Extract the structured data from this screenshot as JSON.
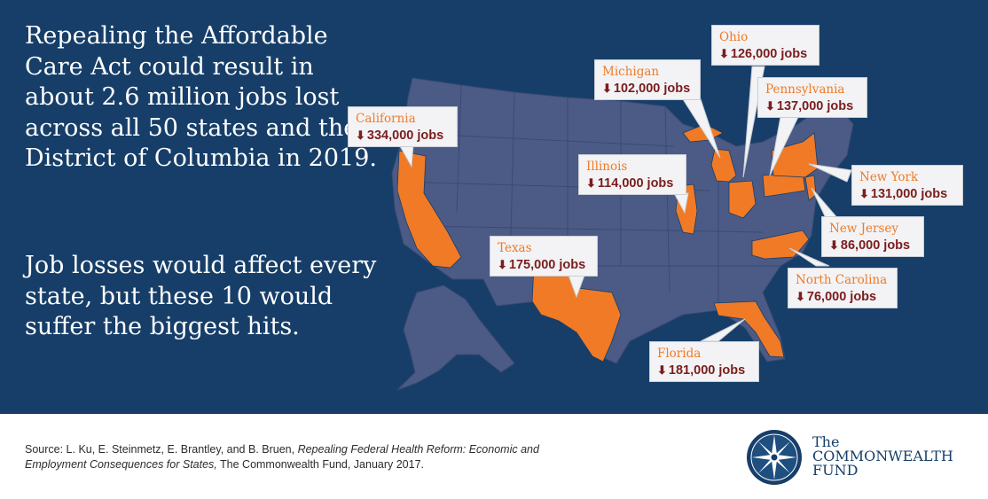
{
  "headline": "Repealing the Affordable Care Act could result in about 2.6 million jobs lost across all 50 states and the District of Columbia in 2019.",
  "subline": "Job losses would affect every state, but these 10 would suffer the biggest hits.",
  "colors": {
    "background": "#163e68",
    "map_states": "#4b5b86",
    "highlight": "#f07a25",
    "callout_bg": "#f3f3f5",
    "job_text": "#7a1d1d"
  },
  "arrow_icon": "down-arrow-icon",
  "callouts": [
    {
      "state": "California",
      "jobs": "334,000 jobs"
    },
    {
      "state": "Michigan",
      "jobs": "102,000 jobs"
    },
    {
      "state": "Ohio",
      "jobs": "126,000 jobs"
    },
    {
      "state": "Pennsylvania",
      "jobs": "137,000 jobs"
    },
    {
      "state": "Illinois",
      "jobs": "114,000 jobs"
    },
    {
      "state": "New York",
      "jobs": "131,000 jobs"
    },
    {
      "state": "New Jersey",
      "jobs": "86,000 jobs"
    },
    {
      "state": "Texas",
      "jobs": "175,000 jobs"
    },
    {
      "state": "North Carolina",
      "jobs": "76,000 jobs"
    },
    {
      "state": "Florida",
      "jobs": "181,000 jobs"
    }
  ],
  "source": {
    "prefix": "Source: L. Ku, E. Steinmetz, E. Brantley, and B. Bruen, ",
    "title": "Repealing Federal Health Reform: Economic and Employment Consequences for States,",
    "suffix": " The Commonwealth Fund, January 2017."
  },
  "logo": {
    "line1": "The",
    "line2": "COMMONWEALTH",
    "line3": "FUND"
  }
}
